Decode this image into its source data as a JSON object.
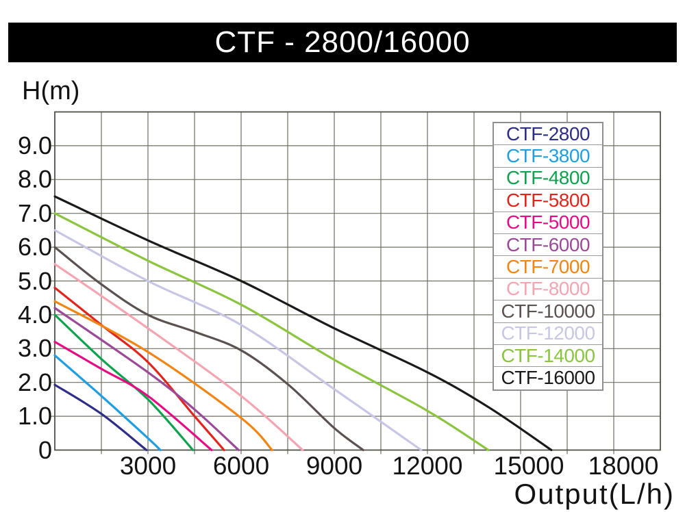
{
  "chart_data": {
    "type": "line",
    "title": "CTF - 2800/16000",
    "xlabel": "Output(L/h)",
    "ylabel": "H(m)",
    "xlim": [
      0,
      19500
    ],
    "ylim": [
      0,
      10
    ],
    "x_grid_step": 1500,
    "y_grid_step": 1,
    "grid": true,
    "legend_position": "top-right",
    "x_ticks": [
      {
        "value": 3000,
        "label": "3000"
      },
      {
        "value": 6000,
        "label": "6000"
      },
      {
        "value": 9000,
        "label": "9000"
      },
      {
        "value": 12000,
        "label": "12000"
      },
      {
        "value": 15000,
        "label": "15000"
      },
      {
        "value": 18000,
        "label": "18000"
      }
    ],
    "y_ticks": [
      {
        "value": 0,
        "label": "0"
      },
      {
        "value": 1,
        "label": "1.0"
      },
      {
        "value": 2,
        "label": "2.0"
      },
      {
        "value": 3,
        "label": "3.0"
      },
      {
        "value": 4,
        "label": "4.0"
      },
      {
        "value": 5,
        "label": "5.0"
      },
      {
        "value": 6,
        "label": "6.0"
      },
      {
        "value": 7,
        "label": "7.0"
      },
      {
        "value": 8,
        "label": "8.0"
      },
      {
        "value": 9,
        "label": "9.0"
      }
    ],
    "series": [
      {
        "name": "CTF-2800",
        "color": "#2e2d88",
        "points": [
          [
            0,
            1.93
          ],
          [
            1500,
            1.07
          ],
          [
            2950,
            0
          ]
        ]
      },
      {
        "name": "CTF-3800",
        "color": "#1f9ee0",
        "points": [
          [
            0,
            2.8
          ],
          [
            1500,
            1.6
          ],
          [
            3000,
            0.35
          ],
          [
            3400,
            0
          ]
        ]
      },
      {
        "name": "CTF-4800",
        "color": "#0ca24e",
        "points": [
          [
            0,
            4.0
          ],
          [
            1550,
            2.65
          ],
          [
            3000,
            1.5
          ],
          [
            4450,
            0
          ]
        ]
      },
      {
        "name": "CTF-5800",
        "color": "#e1251c",
        "points": [
          [
            0,
            4.8
          ],
          [
            1500,
            3.7
          ],
          [
            3000,
            2.6
          ],
          [
            4500,
            1.0
          ],
          [
            5450,
            0
          ]
        ]
      },
      {
        "name": "CTF-5000",
        "color": "#e60b85",
        "points": [
          [
            0,
            3.2
          ],
          [
            1500,
            2.4
          ],
          [
            3000,
            1.6
          ],
          [
            5050,
            0
          ]
        ]
      },
      {
        "name": "CTF-6000",
        "color": "#9c4a98",
        "points": [
          [
            0,
            4.2
          ],
          [
            3000,
            2.3
          ],
          [
            4500,
            1.2
          ],
          [
            5920,
            0
          ]
        ]
      },
      {
        "name": "CTF-7000",
        "color": "#f28411",
        "points": [
          [
            0,
            4.4
          ],
          [
            3000,
            2.9
          ],
          [
            6000,
            0.95
          ],
          [
            7000,
            0
          ]
        ]
      },
      {
        "name": "CTF-8000",
        "color": "#f5a5b2",
        "points": [
          [
            0,
            5.5
          ],
          [
            3000,
            3.6
          ],
          [
            6000,
            1.6
          ],
          [
            7980,
            0
          ]
        ]
      },
      {
        "name": "CTF-10000",
        "color": "#5a5150",
        "points": [
          [
            0,
            6.0
          ],
          [
            1500,
            4.9
          ],
          [
            3000,
            4.0
          ],
          [
            4500,
            3.5
          ],
          [
            6000,
            2.95
          ],
          [
            7500,
            1.95
          ],
          [
            9000,
            0.65
          ],
          [
            9930,
            0
          ]
        ]
      },
      {
        "name": "CTF-12000",
        "color": "#c7c7e5",
        "points": [
          [
            0,
            6.5
          ],
          [
            3000,
            5.0
          ],
          [
            6000,
            3.7
          ],
          [
            9000,
            1.8
          ],
          [
            11800,
            0
          ]
        ]
      },
      {
        "name": "CTF-14000",
        "color": "#8bc53f",
        "points": [
          [
            0,
            7.0
          ],
          [
            3000,
            5.6
          ],
          [
            6000,
            4.3
          ],
          [
            9000,
            2.67
          ],
          [
            12000,
            1.16
          ],
          [
            13960,
            0
          ]
        ]
      },
      {
        "name": "CTF-16000",
        "color": "#1a1a1a",
        "points": [
          [
            0,
            7.5
          ],
          [
            3000,
            6.2
          ],
          [
            6000,
            5.0
          ],
          [
            9000,
            3.6
          ],
          [
            12000,
            2.3
          ],
          [
            14000,
            1.25
          ],
          [
            15990,
            0
          ]
        ]
      }
    ]
  }
}
